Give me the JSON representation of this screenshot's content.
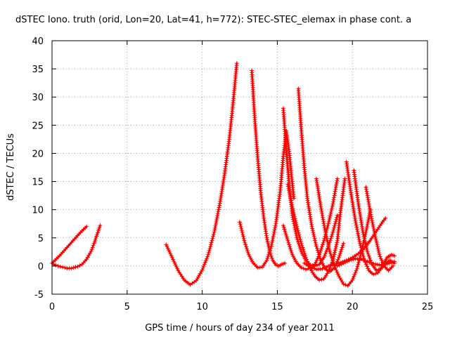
{
  "chart_data": {
    "type": "scatter",
    "title": "dSTEC Iono. truth (orid, Lon=20, Lat=41, h=772): STEC-STEC_elemax in phase cont. a",
    "xlabel": "GPS time / hours of day 234 of year 2011",
    "ylabel": "dSTEC  / TECUs",
    "xlim": [
      0,
      25
    ],
    "ylim": [
      -5,
      40
    ],
    "xticks": [
      0,
      5,
      10,
      15,
      20,
      25
    ],
    "yticks": [
      -5,
      0,
      5,
      10,
      15,
      20,
      25,
      30,
      35,
      40
    ],
    "grid": true,
    "marker": "plus",
    "color": "#ff0000",
    "series": [
      {
        "x": [
          0.0,
          0.3,
          0.6,
          0.9,
          1.2,
          1.5,
          1.8,
          2.1,
          2.3
        ],
        "y": [
          0.5,
          1.3,
          2.1,
          3.0,
          3.9,
          4.8,
          5.7,
          6.5,
          7.0
        ]
      },
      {
        "x": [
          0.1,
          0.4,
          0.7,
          1.0,
          1.3,
          1.7,
          2.0,
          2.3,
          2.6,
          2.8,
          3.0,
          3.2
        ],
        "y": [
          0.3,
          0.0,
          -0.2,
          -0.4,
          -0.4,
          -0.1,
          0.3,
          1.2,
          2.6,
          4.0,
          5.6,
          7.2
        ]
      },
      {
        "x": [
          7.6,
          8.0,
          8.4,
          8.8,
          9.2,
          9.6,
          10.0,
          10.4,
          10.8,
          11.2,
          11.5,
          11.8,
          12.0,
          12.2,
          12.3
        ],
        "y": [
          3.8,
          1.5,
          -0.8,
          -2.5,
          -3.3,
          -2.6,
          -0.7,
          2.0,
          6.0,
          11.5,
          16.5,
          22.5,
          27.5,
          33.0,
          36.0
        ]
      },
      {
        "x": [
          13.3,
          13.5,
          13.7,
          13.9,
          14.1,
          14.3,
          14.5,
          14.7,
          14.9,
          15.1,
          15.3,
          15.5
        ],
        "y": [
          34.7,
          26.0,
          19.0,
          13.0,
          8.5,
          5.0,
          2.5,
          1.0,
          0.2,
          0.0,
          0.3,
          0.5
        ]
      },
      {
        "x": [
          12.5,
          12.8,
          13.1,
          13.4,
          13.7,
          14.0,
          14.3,
          14.6,
          14.9,
          15.2,
          15.4,
          15.6,
          15.8,
          16.1
        ],
        "y": [
          7.8,
          4.5,
          2.0,
          0.5,
          -0.3,
          -0.2,
          1.0,
          3.5,
          7.5,
          13.5,
          19.5,
          24.0,
          20.0,
          12.0
        ]
      },
      {
        "x": [
          15.4,
          15.6,
          15.8,
          16.0,
          16.3,
          16.6,
          16.9,
          17.2,
          17.5,
          17.8,
          18.1,
          18.4,
          18.7,
          19.0
        ],
        "y": [
          28.0,
          20.5,
          14.0,
          9.0,
          5.0,
          2.5,
          1.0,
          0.2,
          0.0,
          0.3,
          1.5,
          3.5,
          6.0,
          9.0
        ]
      },
      {
        "x": [
          16.4,
          16.6,
          16.8,
          17.0,
          17.3,
          17.6,
          17.9,
          18.2,
          18.5,
          18.8,
          19.1,
          19.4
        ],
        "y": [
          31.5,
          24.0,
          17.5,
          12.0,
          7.0,
          3.5,
          1.0,
          -0.5,
          -1.0,
          -0.3,
          1.5,
          4.0
        ]
      },
      {
        "x": [
          15.4,
          15.7,
          16.0,
          16.3,
          16.6,
          16.9,
          17.2,
          17.5,
          17.8,
          18.1,
          18.4,
          18.7,
          19.0
        ],
        "y": [
          7.2,
          4.5,
          2.0,
          0.5,
          -0.3,
          -0.6,
          -0.4,
          0.3,
          2.0,
          4.5,
          7.5,
          11.0,
          15.5
        ]
      },
      {
        "x": [
          15.7,
          16.0,
          16.3,
          16.6,
          16.9,
          17.2,
          17.5,
          17.8,
          18.1,
          18.4,
          18.7,
          19.0,
          19.2,
          19.5
        ],
        "y": [
          14.5,
          10.5,
          7.0,
          4.0,
          1.5,
          -0.5,
          -1.8,
          -2.5,
          -2.3,
          -1.0,
          1.0,
          4.5,
          9.5,
          15.5
        ]
      },
      {
        "x": [
          17.6,
          17.9,
          18.2,
          18.5,
          18.8,
          19.1,
          19.4,
          19.7,
          20.0,
          20.3,
          20.6,
          20.9,
          21.2
        ],
        "y": [
          15.5,
          10.5,
          6.0,
          2.5,
          0.0,
          -1.8,
          -3.2,
          -3.5,
          -2.5,
          -0.5,
          2.5,
          6.0,
          10.0
        ]
      },
      {
        "x": [
          19.6,
          19.9,
          20.2,
          20.5,
          20.8,
          21.1,
          21.4,
          21.7,
          22.0,
          22.3,
          22.6,
          22.8
        ],
        "y": [
          18.5,
          13.0,
          8.0,
          4.0,
          1.0,
          -0.8,
          -1.5,
          -1.2,
          0.0,
          1.5,
          2.0,
          1.8
        ]
      },
      {
        "x": [
          20.1,
          20.4,
          20.7,
          21.0,
          21.3,
          21.6,
          21.9,
          22.2,
          22.5,
          22.8
        ],
        "y": [
          17.0,
          11.0,
          6.0,
          2.5,
          0.3,
          -0.8,
          -0.5,
          0.5,
          1.0,
          0.5
        ]
      },
      {
        "x": [
          20.9,
          21.2,
          21.5,
          21.8,
          22.1,
          22.4,
          22.7
        ],
        "y": [
          14.0,
          9.5,
          5.5,
          2.0,
          0.0,
          -0.8,
          0.0
        ]
      },
      {
        "x": [
          16.8,
          17.2,
          17.6,
          18.0,
          18.4,
          18.8,
          19.2,
          19.6,
          20.0,
          20.4,
          20.8,
          21.2,
          21.6,
          22.0,
          22.2
        ],
        "y": [
          0.5,
          -0.2,
          -0.6,
          -0.5,
          0.0,
          0.3,
          0.6,
          1.0,
          1.5,
          2.2,
          3.2,
          4.6,
          6.2,
          7.8,
          8.5
        ]
      },
      {
        "x": [
          19.0,
          19.4,
          19.8,
          20.2,
          20.6,
          21.0,
          21.4,
          21.8,
          22.2,
          22.6,
          22.8
        ],
        "y": [
          0.0,
          0.5,
          1.0,
          1.3,
          1.2,
          0.8,
          0.4,
          0.2,
          0.3,
          0.6,
          0.8
        ]
      }
    ]
  }
}
